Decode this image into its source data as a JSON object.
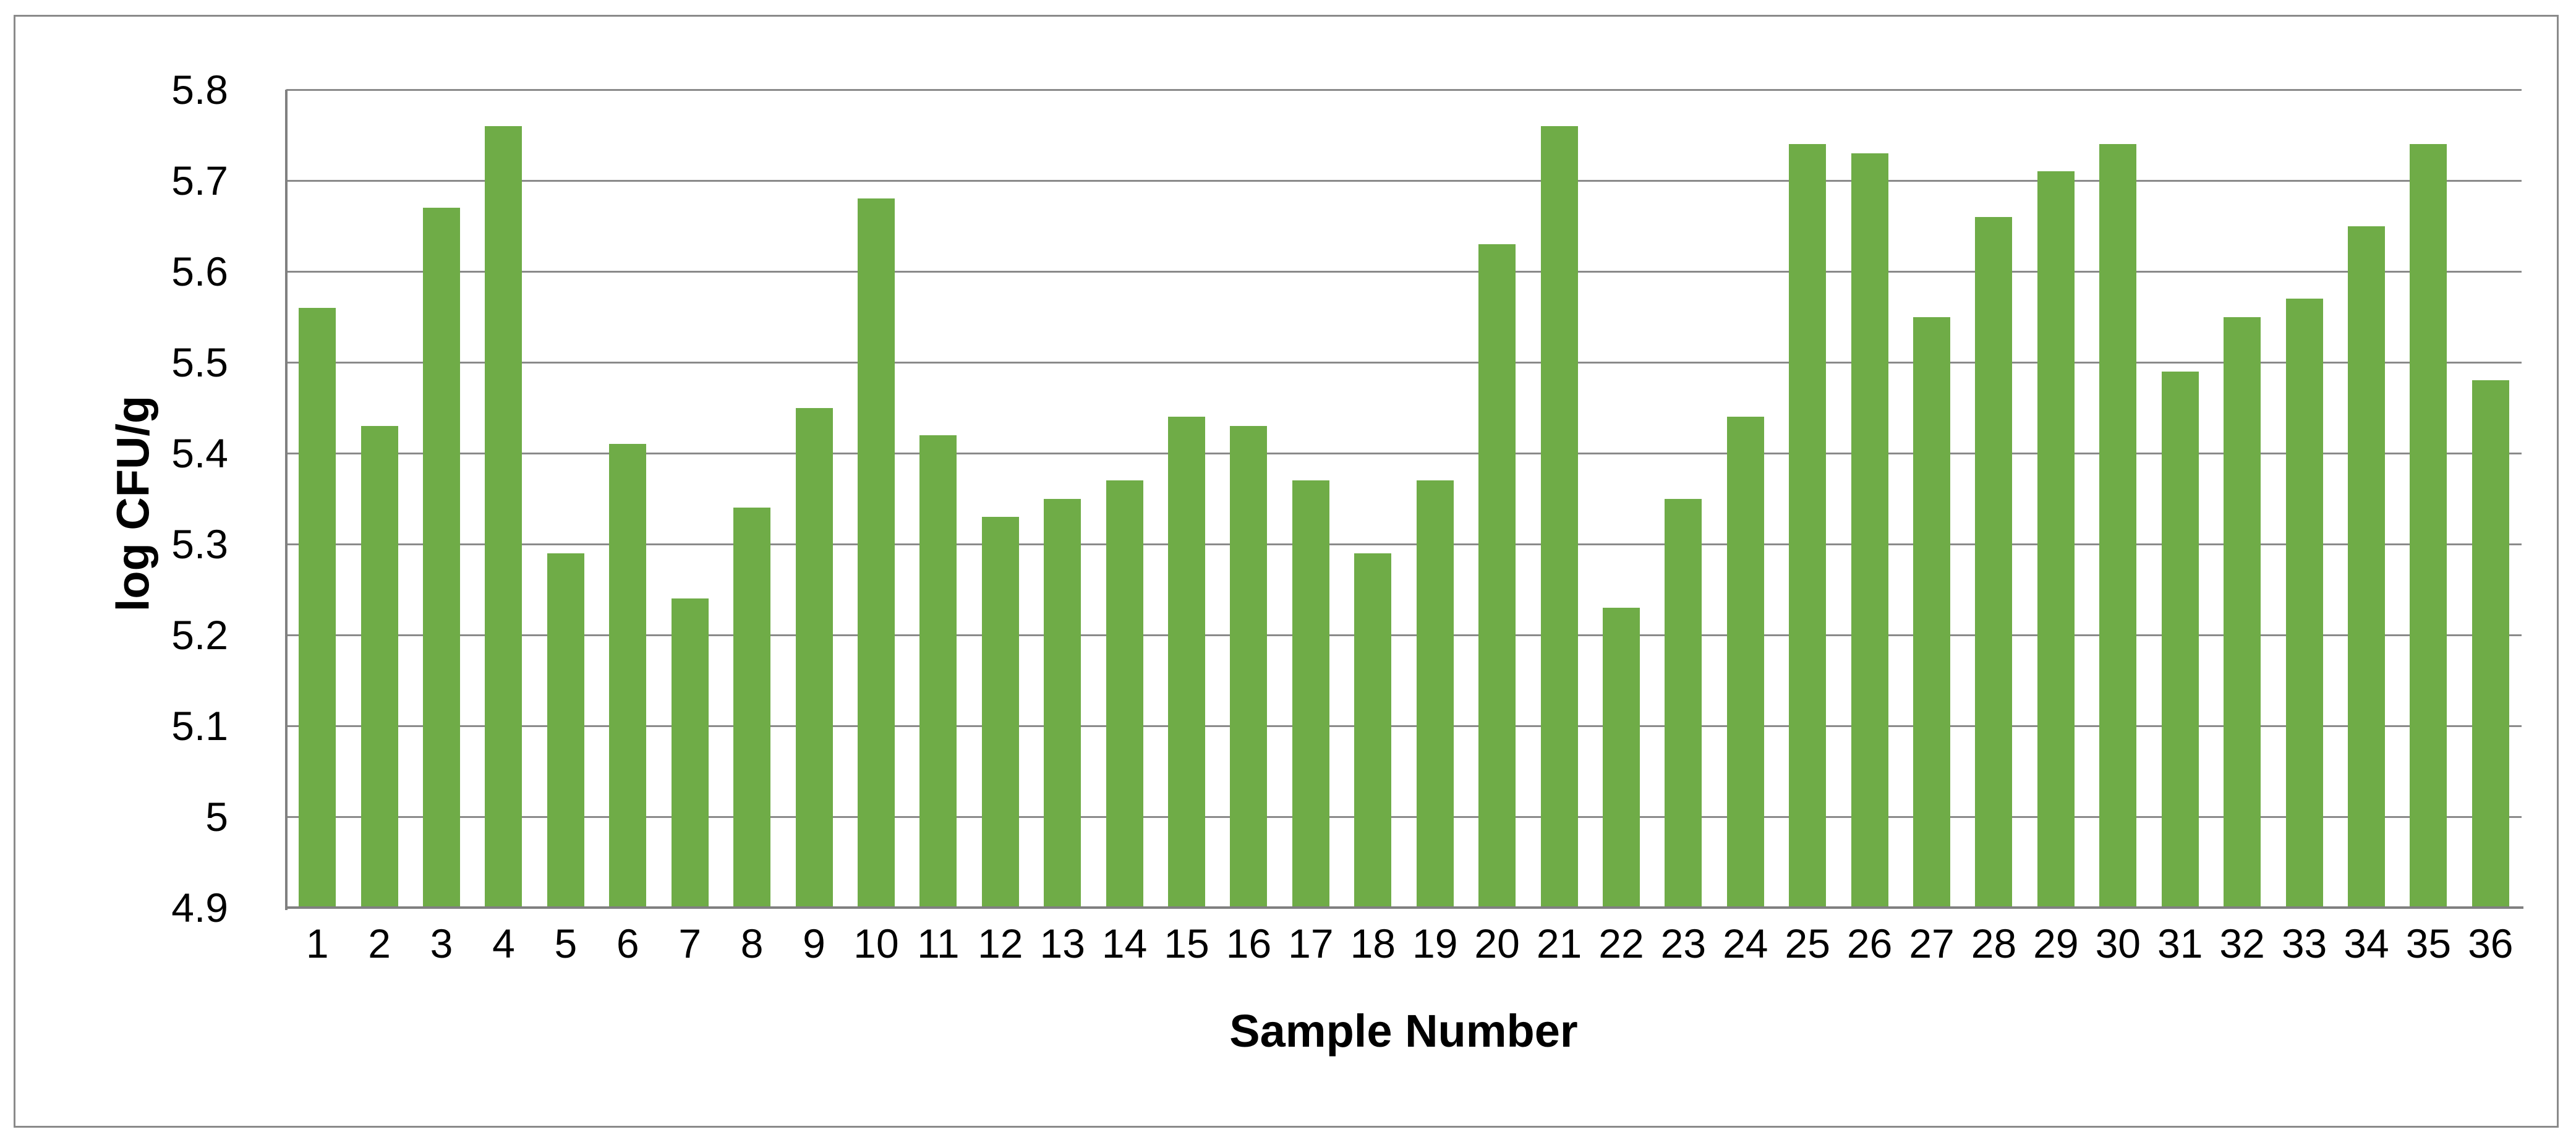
{
  "chart_data": {
    "type": "bar",
    "title": "",
    "xlabel": "Sample Number",
    "ylabel": "log CFU/g",
    "categories": [
      "1",
      "2",
      "3",
      "4",
      "5",
      "6",
      "7",
      "8",
      "9",
      "10",
      "11",
      "12",
      "13",
      "14",
      "15",
      "16",
      "17",
      "18",
      "19",
      "20",
      "21",
      "22",
      "23",
      "24",
      "25",
      "26",
      "27",
      "28",
      "29",
      "30",
      "31",
      "32",
      "33",
      "34",
      "35",
      "36"
    ],
    "values": [
      5.56,
      5.43,
      5.67,
      5.76,
      5.29,
      5.41,
      5.24,
      5.34,
      5.45,
      5.68,
      5.42,
      5.33,
      5.35,
      5.37,
      5.44,
      5.43,
      5.37,
      5.29,
      5.37,
      5.63,
      5.76,
      5.23,
      5.35,
      5.44,
      5.74,
      5.73,
      5.55,
      5.66,
      5.71,
      5.74,
      5.49,
      5.55,
      5.57,
      5.65,
      5.74,
      5.48
    ],
    "ylim": [
      4.9,
      5.8
    ],
    "ytick_labels": [
      "5.8",
      "5.7",
      "5.6",
      "5.5",
      "5.4",
      "5.3",
      "5.2",
      "5.1",
      "5",
      "4.9"
    ],
    "ytick_values": [
      5.8,
      5.7,
      5.6,
      5.5,
      5.4,
      5.3,
      5.2,
      5.1,
      5.0,
      4.9
    ],
    "grid": "horizontal",
    "legend": "none",
    "colors": {
      "bar": "#6fac47",
      "gridline": "#8a8a8a",
      "axis": "#808080",
      "frame_border": "#8a8a8a",
      "background": "#ffffff",
      "text": "#000000"
    }
  }
}
